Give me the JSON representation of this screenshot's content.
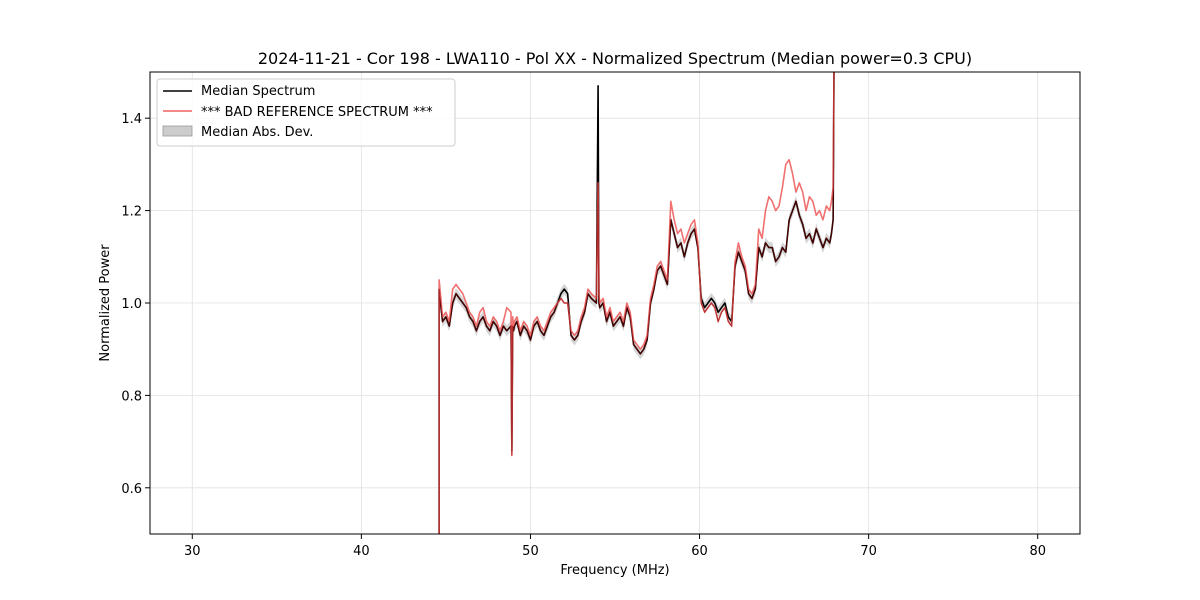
{
  "chart_data": {
    "type": "line",
    "title": "2024-11-21 - Cor 198 - LWA110 - Pol XX - Normalized Spectrum (Median power=0.3 CPU)",
    "xlabel": "Frequency (MHz)",
    "ylabel": "Normalized Power",
    "xlim": [
      27.5,
      82.5
    ],
    "ylim": [
      0.5,
      1.5
    ],
    "xticks": [
      30,
      40,
      50,
      60,
      70,
      80
    ],
    "yticks": [
      0.6,
      0.8,
      1.0,
      1.2,
      1.4
    ],
    "xtick_labels": [
      "30",
      "40",
      "50",
      "60",
      "70",
      "80"
    ],
    "ytick_labels": [
      "0.6",
      "0.8",
      "1.0",
      "1.2",
      "1.4"
    ],
    "grid": true,
    "legend_position": "top-left",
    "legend": [
      {
        "label": "Median Spectrum",
        "color": "#000000",
        "kind": "line"
      },
      {
        "label": "*** BAD REFERENCE SPECTRUM ***",
        "color": "#f06060",
        "kind": "line"
      },
      {
        "label": "Median Abs. Dev.",
        "color": "#cccccc",
        "kind": "patch"
      }
    ],
    "series": [
      {
        "name": "Median Spectrum",
        "color": "#000000",
        "x": [
          44.6,
          44.6,
          44.65,
          44.8,
          45.0,
          45.2,
          45.4,
          45.6,
          45.8,
          46.0,
          46.2,
          46.4,
          46.6,
          46.8,
          47.0,
          47.2,
          47.4,
          47.6,
          47.8,
          48.0,
          48.2,
          48.4,
          48.6,
          48.85,
          48.9,
          48.95,
          49.0,
          49.05,
          49.2,
          49.4,
          49.6,
          49.8,
          50.0,
          50.2,
          50.4,
          50.6,
          50.8,
          51.0,
          51.2,
          51.4,
          51.6,
          51.8,
          52.0,
          52.2,
          52.4,
          52.6,
          52.8,
          53.0,
          53.2,
          53.4,
          53.6,
          53.9,
          54.0,
          54.05,
          54.1,
          54.3,
          54.5,
          54.7,
          54.9,
          55.1,
          55.3,
          55.5,
          55.7,
          55.9,
          56.1,
          56.3,
          56.5,
          56.7,
          56.9,
          57.1,
          57.3,
          57.5,
          57.7,
          57.9,
          58.1,
          58.3,
          58.5,
          58.7,
          58.9,
          59.1,
          59.3,
          59.5,
          59.7,
          59.9,
          60.1,
          60.3,
          60.5,
          60.7,
          60.9,
          61.1,
          61.3,
          61.5,
          61.7,
          61.9,
          62.1,
          62.3,
          62.5,
          62.7,
          62.9,
          63.1,
          63.3,
          63.5,
          63.7,
          63.9,
          64.1,
          64.3,
          64.5,
          64.7,
          64.9,
          65.1,
          65.3,
          65.5,
          65.7,
          65.9,
          66.1,
          66.3,
          66.5,
          66.7,
          66.9,
          67.1,
          67.3,
          67.5,
          67.7,
          67.8,
          67.9,
          67.95
        ],
        "y": [
          0.5,
          1.03,
          1.01,
          0.96,
          0.97,
          0.95,
          1.0,
          1.02,
          1.01,
          1.0,
          0.99,
          0.97,
          0.96,
          0.94,
          0.96,
          0.97,
          0.95,
          0.94,
          0.96,
          0.95,
          0.93,
          0.95,
          0.94,
          0.95,
          0.68,
          0.95,
          0.94,
          0.95,
          0.96,
          0.93,
          0.95,
          0.94,
          0.92,
          0.95,
          0.96,
          0.94,
          0.93,
          0.95,
          0.97,
          0.98,
          1.0,
          1.02,
          1.03,
          1.02,
          0.93,
          0.92,
          0.93,
          0.96,
          0.98,
          1.02,
          1.01,
          1.0,
          1.47,
          1.0,
          0.99,
          1.0,
          0.96,
          0.98,
          0.95,
          0.96,
          0.97,
          0.95,
          0.99,
          0.97,
          0.91,
          0.9,
          0.89,
          0.9,
          0.92,
          1.0,
          1.03,
          1.07,
          1.08,
          1.06,
          1.04,
          1.18,
          1.15,
          1.12,
          1.13,
          1.1,
          1.13,
          1.15,
          1.16,
          1.12,
          1.01,
          0.99,
          1.0,
          1.01,
          1.0,
          0.98,
          0.99,
          1.0,
          0.97,
          0.96,
          1.08,
          1.11,
          1.09,
          1.07,
          1.02,
          1.01,
          1.03,
          1.12,
          1.1,
          1.13,
          1.12,
          1.12,
          1.09,
          1.1,
          1.12,
          1.11,
          1.18,
          1.2,
          1.22,
          1.19,
          1.17,
          1.14,
          1.15,
          1.13,
          1.16,
          1.14,
          1.12,
          1.14,
          1.13,
          1.15,
          1.18,
          1.5
        ]
      },
      {
        "name": "*** BAD REFERENCE SPECTRUM ***",
        "color": "#f06060",
        "x": [
          44.6,
          44.6,
          44.65,
          44.8,
          45.0,
          45.2,
          45.4,
          45.6,
          45.8,
          46.0,
          46.2,
          46.4,
          46.6,
          46.8,
          47.0,
          47.2,
          47.4,
          47.6,
          47.8,
          48.0,
          48.2,
          48.4,
          48.6,
          48.85,
          48.9,
          48.95,
          49.0,
          49.05,
          49.2,
          49.4,
          49.6,
          49.8,
          50.0,
          50.2,
          50.4,
          50.6,
          50.8,
          51.0,
          51.2,
          51.4,
          51.6,
          51.8,
          52.0,
          52.2,
          52.4,
          52.6,
          52.8,
          53.0,
          53.2,
          53.4,
          53.6,
          53.9,
          54.0,
          54.05,
          54.1,
          54.3,
          54.5,
          54.7,
          54.9,
          55.1,
          55.3,
          55.5,
          55.7,
          55.9,
          56.1,
          56.3,
          56.5,
          56.7,
          56.9,
          57.1,
          57.3,
          57.5,
          57.7,
          57.9,
          58.1,
          58.3,
          58.5,
          58.7,
          58.9,
          59.1,
          59.3,
          59.5,
          59.7,
          59.9,
          60.1,
          60.3,
          60.5,
          60.7,
          60.9,
          61.1,
          61.3,
          61.5,
          61.7,
          61.9,
          62.1,
          62.3,
          62.5,
          62.7,
          62.9,
          63.1,
          63.3,
          63.5,
          63.7,
          63.9,
          64.1,
          64.3,
          64.5,
          64.7,
          64.9,
          65.1,
          65.3,
          65.5,
          65.7,
          65.9,
          66.1,
          66.3,
          66.5,
          66.7,
          66.9,
          67.1,
          67.3,
          67.5,
          67.7,
          67.8,
          67.9,
          67.95
        ],
        "y": [
          0.5,
          1.05,
          1.03,
          0.97,
          0.98,
          0.96,
          1.03,
          1.04,
          1.03,
          1.02,
          1.0,
          0.98,
          0.97,
          0.95,
          0.98,
          0.99,
          0.96,
          0.95,
          0.97,
          0.96,
          0.94,
          0.96,
          0.99,
          0.98,
          0.67,
          0.97,
          0.95,
          0.96,
          0.97,
          0.94,
          0.96,
          0.95,
          0.93,
          0.96,
          0.97,
          0.95,
          0.94,
          0.96,
          0.98,
          0.99,
          1.0,
          1.01,
          1.0,
          1.0,
          0.94,
          0.93,
          0.94,
          0.97,
          0.99,
          1.03,
          1.02,
          1.01,
          1.26,
          1.02,
          1.0,
          1.01,
          0.97,
          0.99,
          0.96,
          0.97,
          0.98,
          0.96,
          1.0,
          0.98,
          0.92,
          0.91,
          0.9,
          0.91,
          0.93,
          1.01,
          1.04,
          1.08,
          1.09,
          1.07,
          1.05,
          1.22,
          1.18,
          1.15,
          1.16,
          1.13,
          1.15,
          1.17,
          1.18,
          1.13,
          1.0,
          0.98,
          0.99,
          1.0,
          0.99,
          0.96,
          0.98,
          0.99,
          0.96,
          0.95,
          1.09,
          1.13,
          1.1,
          1.08,
          1.03,
          1.02,
          1.04,
          1.16,
          1.14,
          1.2,
          1.23,
          1.22,
          1.2,
          1.21,
          1.25,
          1.3,
          1.31,
          1.28,
          1.24,
          1.26,
          1.24,
          1.2,
          1.23,
          1.22,
          1.19,
          1.2,
          1.18,
          1.21,
          1.2,
          1.22,
          1.25,
          1.5
        ]
      }
    ]
  }
}
